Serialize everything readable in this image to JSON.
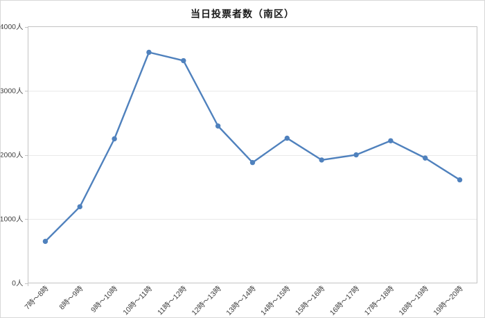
{
  "chart_data": {
    "type": "line",
    "title": "当日投票者数（南区）",
    "categories": [
      "7時～8時",
      "8時～9時",
      "9時～10時",
      "10時～11時",
      "11時～12時",
      "12時～13時",
      "13時～14時",
      "14時～15時",
      "15時～16時",
      "16時～17時",
      "17時～18時",
      "18時～19時",
      "19時～20時"
    ],
    "values": [
      650,
      1190,
      2250,
      3600,
      3470,
      2450,
      1880,
      2260,
      1920,
      2000,
      2220,
      1950,
      1610
    ],
    "xlabel": "",
    "ylabel": "",
    "ylim": [
      0,
      4000
    ],
    "ytick_values": [
      0,
      1000,
      2000,
      3000,
      4000
    ],
    "ytick_labels": [
      "0人",
      "1000人",
      "2000人",
      "3000人",
      "4000人"
    ],
    "grid": "horizontal",
    "legend": "none",
    "colors": {
      "line": "#4f81bd",
      "marker": "#4f81bd",
      "gridline": "#e9e9e9",
      "plot_border": "#c3c3c3",
      "axis_text": "#3f3f3f",
      "frame_border": "#d7d7d7"
    }
  }
}
